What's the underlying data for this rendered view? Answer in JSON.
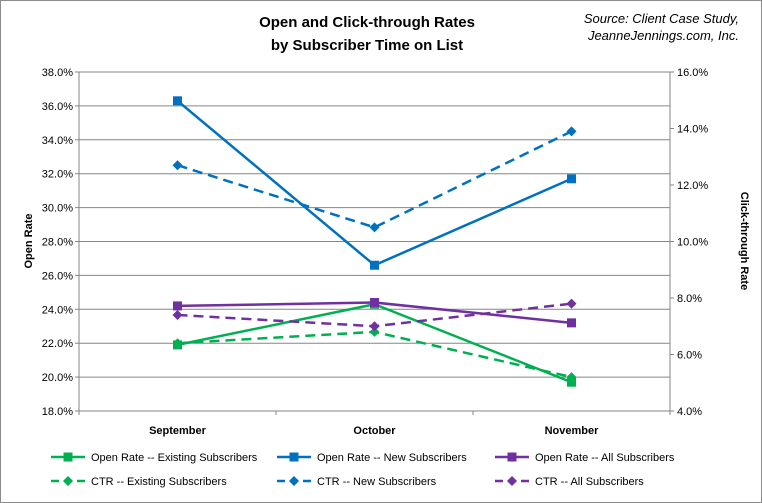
{
  "chart_data": {
    "type": "line",
    "title": [
      "Open and Click-through Rates",
      "by Subscriber Time on List"
    ],
    "source": [
      "Source: Client Case Study,",
      "JeanneJennings.com, Inc."
    ],
    "categories": [
      "September",
      "October",
      "November"
    ],
    "ylabel_left": "Open Rate",
    "ylabel_right": "Click-through Rate",
    "ylim_left": [
      18,
      38
    ],
    "ylim_right": [
      4,
      16
    ],
    "ticks_left": [
      "18.0%",
      "20.0%",
      "22.0%",
      "24.0%",
      "26.0%",
      "28.0%",
      "30.0%",
      "32.0%",
      "34.0%",
      "36.0%",
      "38.0%"
    ],
    "ticks_right": [
      "4.0%",
      "6.0%",
      "8.0%",
      "10.0%",
      "12.0%",
      "14.0%",
      "16.0%"
    ],
    "grid": "horizontal",
    "legend_position": "bottom",
    "series": [
      {
        "name": "Open Rate -- Existing Subscribers",
        "axis": "left",
        "color": "#00b050",
        "dash": "solid",
        "marker": "square",
        "values": [
          21.9,
          24.3,
          19.7
        ]
      },
      {
        "name": "Open Rate -- New Subscribers",
        "axis": "left",
        "color": "#0070c0",
        "dash": "solid",
        "marker": "square",
        "values": [
          36.3,
          26.6,
          31.7
        ]
      },
      {
        "name": "Open Rate -- All Subscribers",
        "axis": "left",
        "color": "#7030a0",
        "dash": "solid",
        "marker": "square",
        "values": [
          24.2,
          24.4,
          23.2
        ]
      },
      {
        "name": "CTR -- Existing Subscribers",
        "axis": "right",
        "color": "#00b050",
        "dash": "dashed",
        "marker": "diamond",
        "values": [
          6.4,
          6.8,
          5.2
        ]
      },
      {
        "name": "CTR -- New Subscribers",
        "axis": "right",
        "color": "#0070c0",
        "dash": "dashed",
        "marker": "diamond",
        "values": [
          12.7,
          10.5,
          13.9
        ]
      },
      {
        "name": "CTR -- All Subscribers",
        "axis": "right",
        "color": "#7030a0",
        "dash": "dashed",
        "marker": "diamond",
        "values": [
          7.4,
          7.0,
          7.8
        ]
      }
    ]
  }
}
